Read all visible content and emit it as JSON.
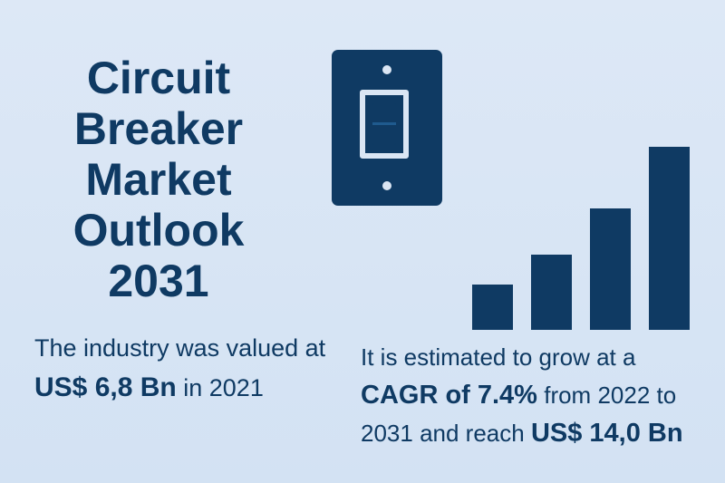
{
  "title": {
    "line1": "Circuit",
    "line2": "Breaker",
    "line3": "Market",
    "line4": "Outlook",
    "line5": "2031"
  },
  "left": {
    "line1": "The industry was valued at",
    "value": "US$ 6,8 Bn",
    "year": "in 2021"
  },
  "right": {
    "line1": "It is estimated to grow at a",
    "cagr": "CAGR of 7.4%",
    "from": "from 2022 to",
    "line3": "2031 and reach",
    "target": "US$ 14,0 Bn"
  },
  "icons": {
    "switch": "light-switch-icon",
    "chart": "bar-chart-icon"
  },
  "colors": {
    "background": "#dde8f6",
    "primary": "#0f3a63"
  }
}
